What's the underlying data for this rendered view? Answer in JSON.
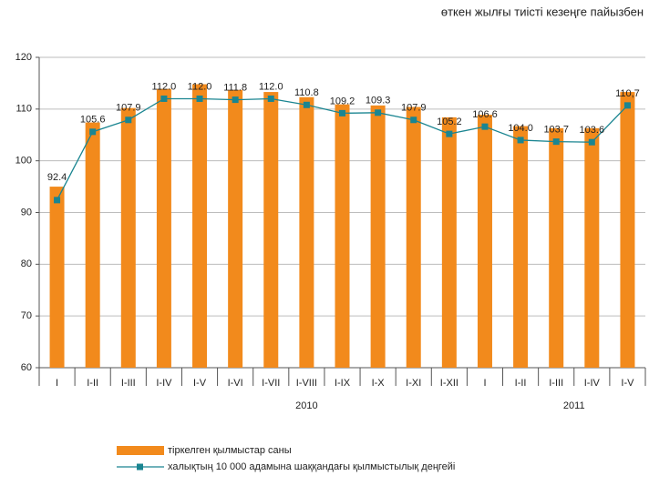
{
  "chart_data": {
    "type": "bar-line",
    "title": "өткен жылғы тиісті кезеңге пайызбен",
    "categories": [
      "I",
      "I-II",
      "I-III",
      "I-IV",
      "I-V",
      "I-VI",
      "I-VII",
      "I-VIII",
      "I-IX",
      "I-X",
      "I-XI",
      "I-XII",
      "I",
      "I-II",
      "I-III",
      "I-IV",
      "I-V"
    ],
    "groups": [
      "2010",
      "2011"
    ],
    "series": [
      {
        "name": "тіркелген қылмыстар саны",
        "type": "bar",
        "color": "#f28a1c",
        "values": [
          95.0,
          107.4,
          110.2,
          113.9,
          114.8,
          113.7,
          113.3,
          112.3,
          110.9,
          110.7,
          110.4,
          108.4,
          108.9,
          106.7,
          106.3,
          106.3,
          113.3
        ]
      },
      {
        "name": "халықтың 10 000 адамына шаққандағы қылмыстылық деңгейі",
        "type": "line",
        "color": "#1a8591",
        "values": [
          92.4,
          105.6,
          107.9,
          112.0,
          112.0,
          111.8,
          112.0,
          110.8,
          109.2,
          109.3,
          107.9,
          105.2,
          106.6,
          104.0,
          103.7,
          103.6,
          110.7
        ],
        "value_labels": [
          "92.4",
          "105.6",
          "107.9",
          "112.0",
          "112.0",
          "111.8",
          "112.0",
          "110.8",
          "109.2",
          "109.3",
          "107.9",
          "105.2",
          "106.6",
          "104.0",
          "103.7",
          "103.6",
          "110,7"
        ]
      }
    ],
    "ylim": [
      60,
      120
    ],
    "yticks": [
      60,
      70,
      80,
      90,
      100,
      110,
      120
    ],
    "grid": true
  }
}
